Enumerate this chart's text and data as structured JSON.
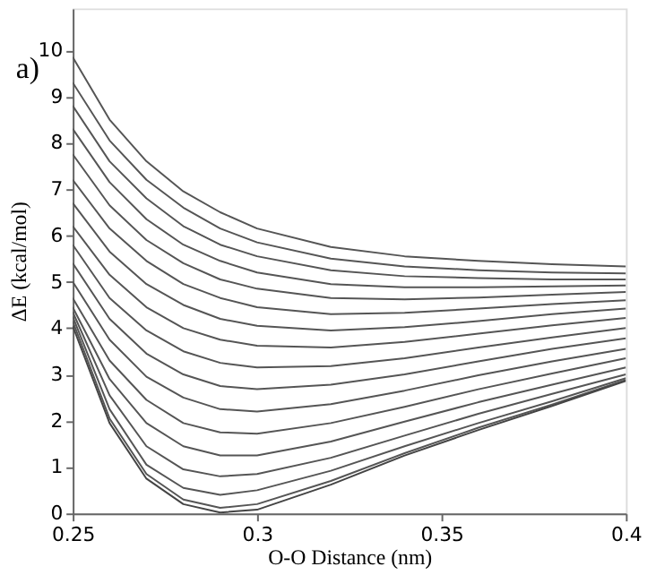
{
  "chart_data": {
    "type": "line",
    "xlabel": "O-O Distance (nm)",
    "ylabel": "ΔE (kcal/mol)",
    "annotations": [
      "a)"
    ],
    "x": [
      0.25,
      0.26,
      0.27,
      0.28,
      0.29,
      0.3,
      0.32,
      0.34,
      0.36,
      0.38,
      0.4
    ],
    "xlim": [
      0.25,
      0.4
    ],
    "xticks": [
      0.25,
      0.3,
      0.35,
      0.4
    ],
    "ylim": [
      0,
      10.9
    ],
    "yticks": [
      0,
      1,
      2,
      3,
      4,
      5,
      6,
      7,
      8,
      9,
      10
    ],
    "grid": false,
    "legend": false,
    "marker": "none",
    "line_style": "solid",
    "series": [
      {
        "color": "#555555",
        "values": [
          9.85,
          8.5,
          7.6,
          6.95,
          6.5,
          6.15,
          5.75,
          5.55,
          5.45,
          5.38,
          5.33
        ]
      },
      {
        "color": "#555555",
        "values": [
          9.3,
          8.05,
          7.2,
          6.6,
          6.15,
          5.85,
          5.5,
          5.33,
          5.25,
          5.2,
          5.18
        ]
      },
      {
        "color": "#555555",
        "values": [
          8.8,
          7.6,
          6.8,
          6.2,
          5.8,
          5.55,
          5.25,
          5.12,
          5.08,
          5.05,
          5.05
        ]
      },
      {
        "color": "#555555",
        "values": [
          8.3,
          7.15,
          6.35,
          5.8,
          5.45,
          5.2,
          4.95,
          4.88,
          4.88,
          4.9,
          4.92
        ]
      },
      {
        "color": "#555555",
        "values": [
          7.75,
          6.65,
          5.9,
          5.4,
          5.05,
          4.85,
          4.65,
          4.62,
          4.66,
          4.72,
          4.78
        ]
      },
      {
        "color": "#555555",
        "values": [
          7.2,
          6.15,
          5.45,
          4.95,
          4.65,
          4.45,
          4.3,
          4.33,
          4.42,
          4.52,
          4.6
        ]
      },
      {
        "color": "#555555",
        "values": [
          6.7,
          5.65,
          4.95,
          4.5,
          4.2,
          4.05,
          3.95,
          4.02,
          4.15,
          4.3,
          4.42
        ]
      },
      {
        "color": "#555555",
        "values": [
          6.2,
          5.15,
          4.45,
          4.0,
          3.75,
          3.62,
          3.58,
          3.7,
          3.88,
          4.06,
          4.22
        ]
      },
      {
        "color": "#555555",
        "values": [
          5.8,
          4.65,
          3.95,
          3.5,
          3.25,
          3.15,
          3.18,
          3.35,
          3.58,
          3.8,
          4.0
        ]
      },
      {
        "color": "#555555",
        "values": [
          5.4,
          4.2,
          3.45,
          3.0,
          2.75,
          2.68,
          2.78,
          3.0,
          3.28,
          3.55,
          3.78
        ]
      },
      {
        "color": "#555555",
        "values": [
          5.0,
          3.75,
          2.95,
          2.5,
          2.25,
          2.2,
          2.36,
          2.65,
          2.98,
          3.28,
          3.55
        ]
      },
      {
        "color": "#555555",
        "values": [
          4.65,
          3.3,
          2.45,
          1.95,
          1.75,
          1.72,
          1.95,
          2.3,
          2.68,
          3.02,
          3.35
        ]
      },
      {
        "color": "#555555",
        "values": [
          4.45,
          2.9,
          1.95,
          1.45,
          1.25,
          1.25,
          1.55,
          1.98,
          2.4,
          2.78,
          3.15
        ]
      },
      {
        "color": "#555555",
        "values": [
          4.35,
          2.55,
          1.45,
          0.95,
          0.8,
          0.85,
          1.2,
          1.68,
          2.15,
          2.58,
          3.0
        ]
      },
      {
        "color": "#555555",
        "values": [
          4.25,
          2.25,
          1.05,
          0.55,
          0.4,
          0.5,
          0.92,
          1.45,
          1.95,
          2.42,
          2.92
        ]
      },
      {
        "color": "#555555",
        "values": [
          4.15,
          2.05,
          0.85,
          0.3,
          0.12,
          0.2,
          0.7,
          1.3,
          1.85,
          2.35,
          2.88
        ]
      },
      {
        "color": "#444444",
        "values": [
          4.05,
          1.95,
          0.75,
          0.2,
          0.02,
          0.08,
          0.62,
          1.25,
          1.8,
          2.32,
          2.86
        ]
      }
    ]
  }
}
